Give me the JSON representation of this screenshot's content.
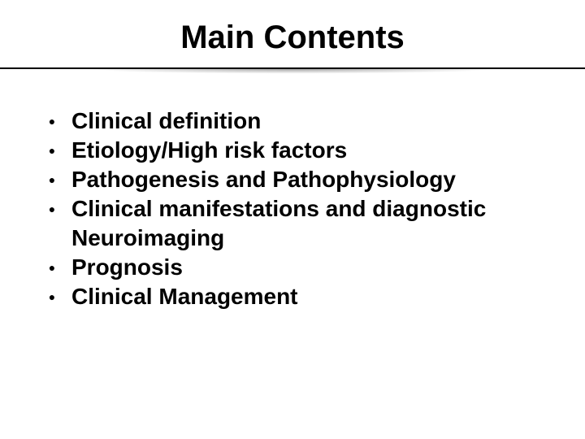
{
  "slide": {
    "title": "Main Contents",
    "title_fontsize": 40,
    "title_color": "#000000",
    "background_color": "#ffffff",
    "divider_color": "#000000",
    "bullet_marker": "●",
    "bullet_fontsize": 28,
    "bullet_color": "#000000",
    "items": [
      {
        "text": "Clinical definition"
      },
      {
        "text": "Etiology/High risk factors"
      },
      {
        "text": "Pathogenesis and  Pathophysiology"
      },
      {
        "text": "Clinical manifestations and diagnostic Neuroimaging"
      },
      {
        "text": "Prognosis"
      },
      {
        "text": "Clinical Management"
      }
    ]
  }
}
